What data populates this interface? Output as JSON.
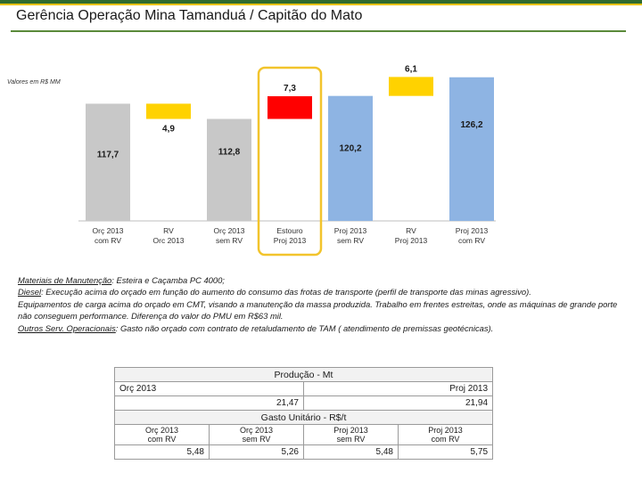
{
  "page": {
    "title": "Gerência Operação Mina Tamanduá / Capitão do Mato",
    "unit_note": "Valores em R$ MM"
  },
  "chart_data": {
    "type": "waterfall",
    "title": "",
    "xlabel": "",
    "ylabel": "",
    "categories": [
      [
        "Orç 2013",
        "com RV"
      ],
      [
        "RV",
        "Orc 2013"
      ],
      [
        "Orç 2013",
        "sem RV"
      ],
      [
        "Estouro",
        "Proj 2013"
      ],
      [
        "Proj 2013",
        "sem RV"
      ],
      [
        "RV",
        "Proj 2013"
      ],
      [
        "Proj 2013",
        "com RV"
      ]
    ],
    "bars": [
      {
        "kind": "total",
        "base": 0,
        "value": 117.7,
        "label": "117,7",
        "color": "#c8c8c8"
      },
      {
        "kind": "delta",
        "base": 112.8,
        "value": 4.9,
        "label": "4,9",
        "color": "#ffd200"
      },
      {
        "kind": "total",
        "base": 0,
        "value": 112.8,
        "label": "112,8",
        "color": "#c8c8c8"
      },
      {
        "kind": "delta",
        "base": 112.8,
        "value": 7.3,
        "label": "7,3",
        "color": "#ff0000"
      },
      {
        "kind": "total",
        "base": 0,
        "value": 120.2,
        "label": "120,2",
        "color": "#8eb4e3"
      },
      {
        "kind": "delta",
        "base": 120.2,
        "value": 6.1,
        "label": "6,1",
        "color": "#ffd200"
      },
      {
        "kind": "total",
        "base": 0,
        "value": 126.2,
        "label": "126,2",
        "color": "#8eb4e3"
      }
    ],
    "highlight_index": 3,
    "highlight_color": "#f2c42c",
    "grid": false
  },
  "notes": [
    {
      "label": "Materiais de Manutenção",
      "text": ": Esteira e Caçamba PC 4000;"
    },
    {
      "label": "Diesel",
      "text": ": Execução acima do orçado em função do aumento do consumo das frotas de transporte (perfil de transporte das minas agressivo)."
    },
    {
      "label": "",
      "text": "Equipamentos de carga acima do orçado em CMT, visando a manutenção da massa produzida. Trabalho em frentes estreitas, onde as máquinas de grande porte não conseguem performance. Diferença do valor do PMU em R$63 mil."
    },
    {
      "label": "Outros Serv. Operacionais",
      "text": ": Gasto não orçado com contrato de retaludamento de TAM ( atendimento de premissas geotécnicas)."
    }
  ],
  "production": {
    "title": "Produção - Mt",
    "col1_label": "Orç 2013",
    "col2_label": "Proj 2013",
    "col1_value": "21,47",
    "col2_value": "21,94"
  },
  "unit_cost": {
    "title": "Gasto Unitário - R$/t",
    "columns": [
      {
        "label": [
          "Orç 2013",
          "com RV"
        ],
        "value": "5,48"
      },
      {
        "label": [
          "Orç 2013",
          "sem RV"
        ],
        "value": "5,26"
      },
      {
        "label": [
          "Proj 2013",
          "sem RV"
        ],
        "value": "5,48"
      },
      {
        "label": [
          "Proj 2013",
          "com RV"
        ],
        "value": "5,75"
      }
    ]
  }
}
